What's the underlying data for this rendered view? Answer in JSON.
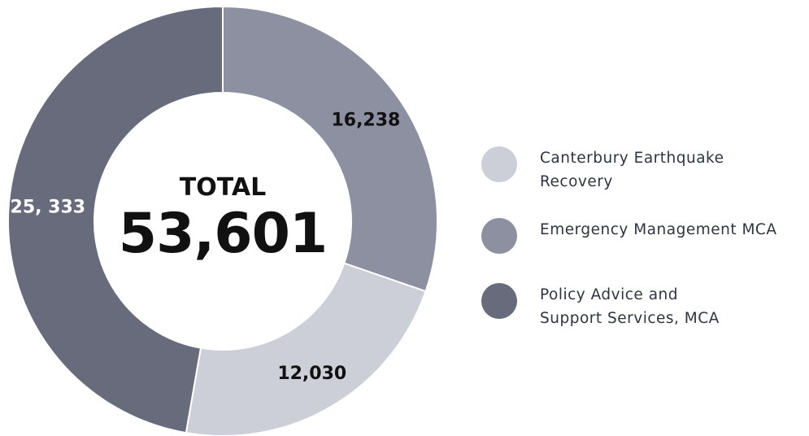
{
  "chart_data": {
    "type": "pie",
    "donut": true,
    "center_label": {
      "title": "TOTAL",
      "value": "53,601"
    },
    "slices": [
      {
        "name": "Canterbury Earthquake Recovery",
        "legend_label": "Canterbury Earthquake\nRecovery",
        "value": 12030,
        "display_label": "12,030",
        "color": "#cdcfd8",
        "label_color": "#111111"
      },
      {
        "name": "Emergency Management MCA",
        "legend_label": "Emergency Management MCA",
        "value": 16238,
        "display_label": "16,238",
        "color": "#8d90a0",
        "label_color": "#111111"
      },
      {
        "name": "Policy Advice and Support Services, MCA",
        "legend_label": "Policy Advice and\nSupport Services, MCA",
        "value": 25333,
        "display_label": "25, 333",
        "color": "#676b7c",
        "label_color": "#ffffff"
      }
    ],
    "legend_position": "right"
  }
}
